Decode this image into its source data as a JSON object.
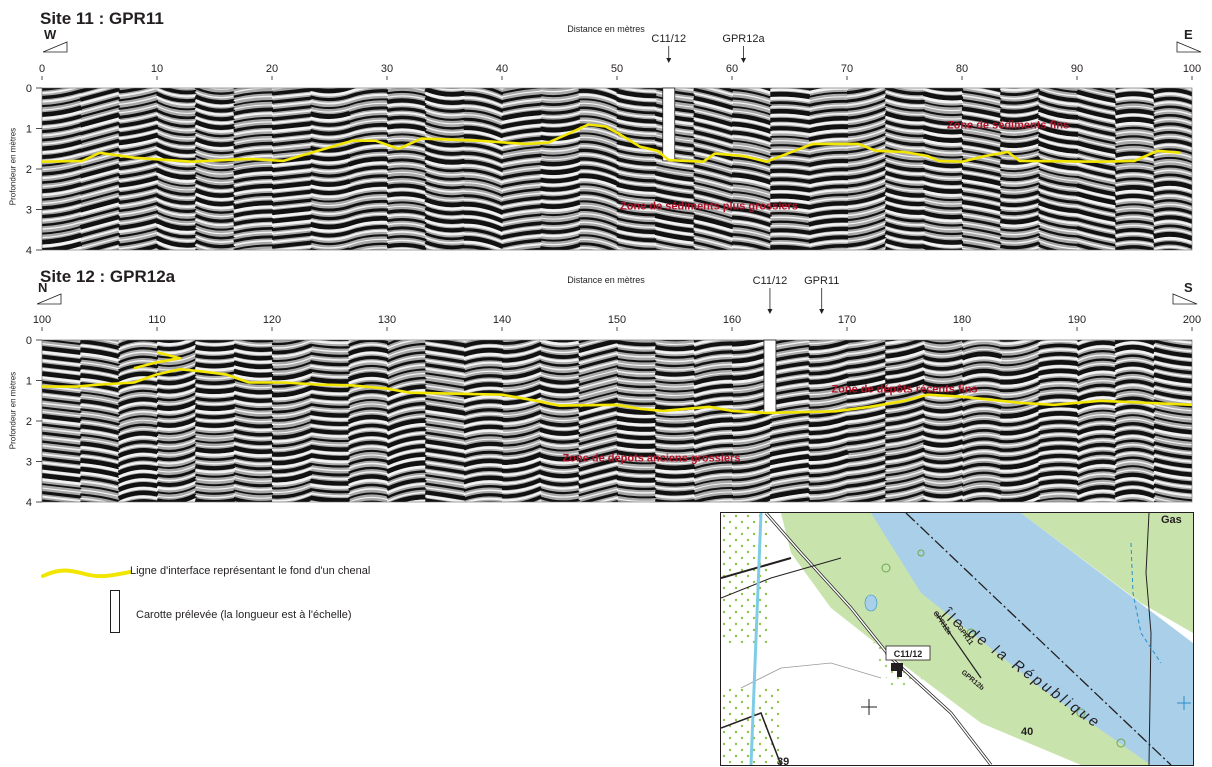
{
  "colors": {
    "interface_line": "#f2e600",
    "zone_label": "#b0132a",
    "river": "#a9cfe9",
    "floodplain": "#c9e3ad",
    "accent_road": "#7fcce6"
  },
  "profiles": [
    {
      "title": "Site 11 : GPR11",
      "orientation_left": "W",
      "orientation_right": "E",
      "distance_label": "Distance en mètres",
      "depth_label": "Profondeur en mètres",
      "x_range": [
        0,
        100
      ],
      "x_ticks": [
        "0",
        "10",
        "20",
        "30",
        "40",
        "50",
        "60",
        "70",
        "80",
        "90",
        "100"
      ],
      "depth_ticks": [
        "0",
        "1",
        "2",
        "3",
        "4"
      ],
      "markers": [
        {
          "label": "C11/12",
          "x": 54.5
        },
        {
          "label": "GPR12a",
          "x": 61
        }
      ],
      "core": {
        "x": 54.5,
        "depth_top": 0,
        "depth_bottom": 1.8
      },
      "interface": [
        [
          0,
          1.82
        ],
        [
          3.5,
          1.8
        ],
        [
          5,
          1.6
        ],
        [
          8,
          1.72
        ],
        [
          13,
          1.82
        ],
        [
          18,
          1.75
        ],
        [
          21,
          1.8
        ],
        [
          24,
          1.55
        ],
        [
          27,
          1.3
        ],
        [
          29,
          1.3
        ],
        [
          31,
          1.5
        ],
        [
          33,
          1.25
        ],
        [
          38,
          1.3
        ],
        [
          42,
          1.38
        ],
        [
          44,
          1.35
        ],
        [
          46,
          1.1
        ],
        [
          47.5,
          0.9
        ],
        [
          49,
          0.95
        ],
        [
          50,
          1.1
        ],
        [
          52,
          1.45
        ],
        [
          53.5,
          1.55
        ],
        [
          54.5,
          1.78
        ],
        [
          56,
          1.8
        ],
        [
          57.5,
          1.82
        ],
        [
          58.5,
          1.62
        ],
        [
          61,
          1.68
        ],
        [
          63,
          1.82
        ],
        [
          65,
          1.6
        ],
        [
          67,
          1.38
        ],
        [
          71,
          1.38
        ],
        [
          72.5,
          1.55
        ],
        [
          75,
          1.58
        ],
        [
          77,
          1.68
        ],
        [
          78,
          1.8
        ],
        [
          80,
          1.82
        ],
        [
          82,
          1.68
        ],
        [
          84,
          1.58
        ],
        [
          85,
          1.8
        ],
        [
          92,
          1.82
        ],
        [
          95,
          1.8
        ],
        [
          97,
          1.55
        ],
        [
          99,
          1.6
        ]
      ],
      "zones": [
        {
          "label": "Zone  de sédiments fins",
          "x": 84,
          "depth": 1.0
        },
        {
          "label": "Zone  de sédiments plus grossiers",
          "x": 58,
          "depth": 3.0
        }
      ]
    },
    {
      "title": "Site 12 : GPR12a",
      "orientation_left": "N",
      "orientation_right": "S",
      "distance_label": "Distance en mètres",
      "depth_label": "Profondeur en mètres",
      "x_range": [
        100,
        200
      ],
      "x_ticks": [
        "100",
        "110",
        "120",
        "130",
        "140",
        "150",
        "160",
        "170",
        "180",
        "190",
        "200"
      ],
      "depth_ticks": [
        "0",
        "1",
        "2",
        "3",
        "4"
      ],
      "markers": [
        {
          "label": "C11/12",
          "x": 163.3
        },
        {
          "label": "GPR11",
          "x": 167.8
        }
      ],
      "core": {
        "x": 163.3,
        "depth_top": 0,
        "depth_bottom": 1.8
      },
      "interface": [
        [
          100,
          1.15
        ],
        [
          103,
          1.15
        ],
        [
          105,
          1.1
        ],
        [
          108,
          1.05
        ],
        [
          110,
          0.85
        ],
        [
          112,
          0.72
        ],
        [
          114,
          0.78
        ],
        [
          116,
          0.85
        ],
        [
          118,
          1.05
        ],
        [
          121,
          1.05
        ],
        [
          124,
          1.1
        ],
        [
          127,
          1.12
        ],
        [
          130,
          1.2
        ],
        [
          132,
          1.3
        ],
        [
          140,
          1.35
        ],
        [
          143,
          1.5
        ],
        [
          145,
          1.62
        ],
        [
          150,
          1.6
        ],
        [
          152,
          1.7
        ],
        [
          154,
          1.75
        ],
        [
          158,
          1.65
        ],
        [
          160,
          1.75
        ],
        [
          163,
          1.8
        ],
        [
          169,
          1.76
        ],
        [
          172,
          1.65
        ],
        [
          175,
          1.5
        ],
        [
          177,
          1.35
        ],
        [
          180,
          1.4
        ],
        [
          185,
          1.55
        ],
        [
          188,
          1.6
        ],
        [
          192,
          1.5
        ],
        [
          200,
          1.6
        ]
      ],
      "branch": [
        [
          110,
          0.3
        ],
        [
          112,
          0.45
        ],
        [
          110,
          0.55
        ],
        [
          108,
          0.7
        ]
      ],
      "zones": [
        {
          "label": "Zone  de dépôts récents fins",
          "x": 175,
          "depth": 1.3
        },
        {
          "label": "Zone  de dépots anciens grossiers",
          "x": 153,
          "depth": 3.0
        }
      ]
    }
  ],
  "legend": {
    "line_text": "Ligne d'interface représentant le fond d'un chenal",
    "core_text": "Carotte prélevée (la longueur est à l'échelle)"
  },
  "map": {
    "core_label": "C11/12",
    "profile_labels": [
      "GPR12a",
      "GPR11",
      "GPR12b"
    ],
    "place_name": "Île de la République",
    "contours": [
      "39",
      "40"
    ],
    "corner_text": "Gas"
  }
}
